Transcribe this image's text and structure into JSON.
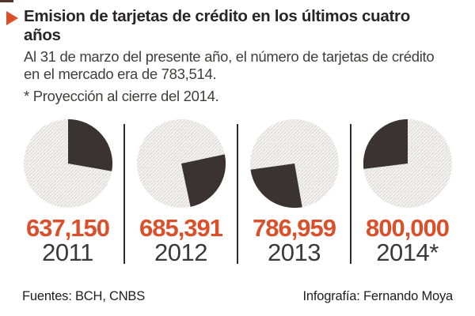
{
  "accent_color": "#d9502b",
  "dark_color": "#3a3332",
  "hatch_bg_color": "#f6f5f4",
  "hatch_line_color": "#dbd9d7",
  "header": {
    "bullet_icon": "right-triangle",
    "title": "Emision de tarjetas de crédito en los últimos cuatro años",
    "subtitle": "Al 31 de marzo del presente año, el número de tarjetas de crédito en el mercado era de 783,514.",
    "note": "* Proyección al cierre del 2014."
  },
  "chart_data": {
    "type": "pie",
    "title": "Emision de tarjetas de crédito en los últimos cuatro años",
    "legend_position": "none",
    "pies": [
      {
        "year": "2011",
        "value_label": "637,150",
        "value": 637150,
        "slice_start_deg": 0,
        "slice_end_deg": 100
      },
      {
        "year": "2012",
        "value_label": "685,391",
        "value": 685391,
        "slice_start_deg": 78,
        "slice_end_deg": 168
      },
      {
        "year": "2013",
        "value_label": "786,959",
        "value": 786959,
        "slice_start_deg": 170,
        "slice_end_deg": 262
      },
      {
        "year": "2014*",
        "value_label": "800,000",
        "value": 800000,
        "slice_start_deg": 263,
        "slice_end_deg": 360
      }
    ]
  },
  "footer": {
    "sources": "Fuentes: BCH, CNBS",
    "credit": "Infografía: Fernando Moya"
  }
}
